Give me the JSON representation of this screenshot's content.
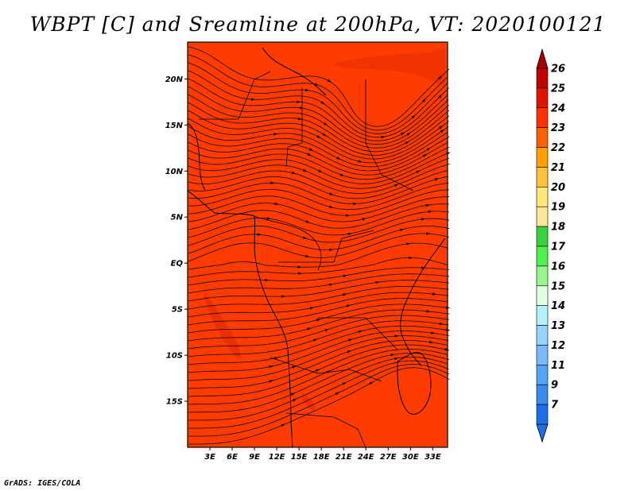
{
  "title": "WBPT [C] and Sreamline at 200hPa, VT: 2020100121",
  "credit": "GrADS: IGES/COLA",
  "map": {
    "lon_range": [
      0,
      35
    ],
    "lat_range": [
      -20,
      24
    ],
    "background_color": "#ff3c00",
    "lat_ticks": [
      {
        "value": 20,
        "label": "20N"
      },
      {
        "value": 15,
        "label": "15N"
      },
      {
        "value": 10,
        "label": "10N"
      },
      {
        "value": 5,
        "label": "5N"
      },
      {
        "value": 0,
        "label": "EQ"
      },
      {
        "value": -5,
        "label": "5S"
      },
      {
        "value": -10,
        "label": "10S"
      },
      {
        "value": -15,
        "label": "15S"
      }
    ],
    "lon_ticks": [
      {
        "value": 3,
        "label": "3E"
      },
      {
        "value": 6,
        "label": "6E"
      },
      {
        "value": 9,
        "label": "9E"
      },
      {
        "value": 12,
        "label": "12E"
      },
      {
        "value": 15,
        "label": "15E"
      },
      {
        "value": 18,
        "label": "18E"
      },
      {
        "value": 21,
        "label": "21E"
      },
      {
        "value": 24,
        "label": "24E"
      },
      {
        "value": 27,
        "label": "27E"
      },
      {
        "value": 30,
        "label": "30E"
      },
      {
        "value": 33,
        "label": "33E"
      }
    ]
  },
  "colorbar": {
    "over_color": "#a50000",
    "under_color": "#1e6eeb",
    "colors": [
      "#1e6eeb",
      "#3c8cf0",
      "#50a5f5",
      "#78b9fa",
      "#96d2fa",
      "#b4f0fa",
      "#e1ffe1",
      "#96f58c",
      "#50f050",
      "#37d23c",
      "#fae696",
      "#ffe878",
      "#ffc03c",
      "#ffa000",
      "#ff6000",
      "#ff3200",
      "#e11400",
      "#c00000"
    ],
    "labels": [
      "7",
      "9",
      "11",
      "12",
      "13",
      "14",
      "15",
      "16",
      "17",
      "18",
      "19",
      "20",
      "21",
      "22",
      "23",
      "24",
      "25",
      "26"
    ]
  }
}
